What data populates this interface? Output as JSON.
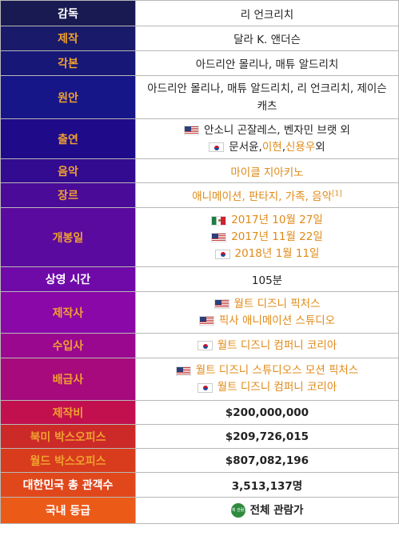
{
  "rows": [
    {
      "label": "감독",
      "bg": "#1a1a52",
      "color": "#ffffff",
      "value": "리 언크리치"
    },
    {
      "label": "제작",
      "bg": "#1a1a6a",
      "color": "#f0a030",
      "value": "달라 K. 앤더슨"
    },
    {
      "label": "각본",
      "bg": "#171778",
      "color": "#f0a030",
      "value": "아드리안 몰리나, 매튜 알드리치"
    },
    {
      "label": "원안",
      "bg": "#161688",
      "color": "#f0a030",
      "value": "아드리안 몰리나, 매튜 알드리치, 리 언크리치, 제이슨 캐츠"
    },
    {
      "label": "출연",
      "bg": "#1f0b8a",
      "color": "#f0a030",
      "line1": "안소니 곤잘레스, 벤자민 브랫 외",
      "line2a": "문서윤, ",
      "line2b": "이현",
      "line2c": ", ",
      "line2d": "신용우",
      "line2e": " 외"
    },
    {
      "label": "음악",
      "bg": "#330b90",
      "color": "#f0a030",
      "value": "마이클 지아키노"
    },
    {
      "label": "장르",
      "bg": "#4a0b99",
      "color": "#f0a030",
      "value": "애니메이션, 판타지, 가족, 음악",
      "ref": "[1]"
    },
    {
      "label": "개봉일",
      "bg": "#5a0a9e",
      "color": "#f0a030",
      "dates": [
        "2017년 10월 27일",
        "2017년 11월 22일",
        "2018년 1월 11일"
      ]
    },
    {
      "label": "상영 시간",
      "bg": "#6f0aa8",
      "color": "#ffffff",
      "value": "105분"
    },
    {
      "label": "제작사",
      "bg": "#8a08a8",
      "color": "#f0a030",
      "line1": "월트 디즈니 픽처스",
      "line2": "픽사 애니메이션 스튜디오"
    },
    {
      "label": "수입사",
      "bg": "#9a0890",
      "color": "#f0a030",
      "value": "월트 디즈니 컴퍼니 코리아"
    },
    {
      "label": "배급사",
      "bg": "#a60a7c",
      "color": "#f0a030",
      "line1": "월트 디즈니 스튜디오스 모션 픽처스",
      "line2": "월트 디즈니 컴퍼니 코리아"
    },
    {
      "label": "제작비",
      "bg": "#c2104e",
      "color": "#f0a030",
      "value": "$200,000,000"
    },
    {
      "label": "북미 박스오피스",
      "bg": "#cc2a28",
      "color": "#f0a030",
      "value": "$209,726,015"
    },
    {
      "label": "월드 박스오피스",
      "bg": "#d83c1c",
      "color": "#f0a030",
      "value": "$807,082,196"
    },
    {
      "label": "대한민국 총 관객수",
      "bg": "#e0481c",
      "color": "#ffffff",
      "value": "3,513,137명"
    },
    {
      "label": "국내 등급",
      "bg": "#ec5a18",
      "color": "#ffffff",
      "value": "전체 관람가",
      "icon_text": "전체 관람가"
    }
  ],
  "icons": {
    "us": "us-flag-icon",
    "kr": "kr-flag-icon",
    "mx": "mx-flag-icon",
    "rating": "rating-all-icon"
  }
}
